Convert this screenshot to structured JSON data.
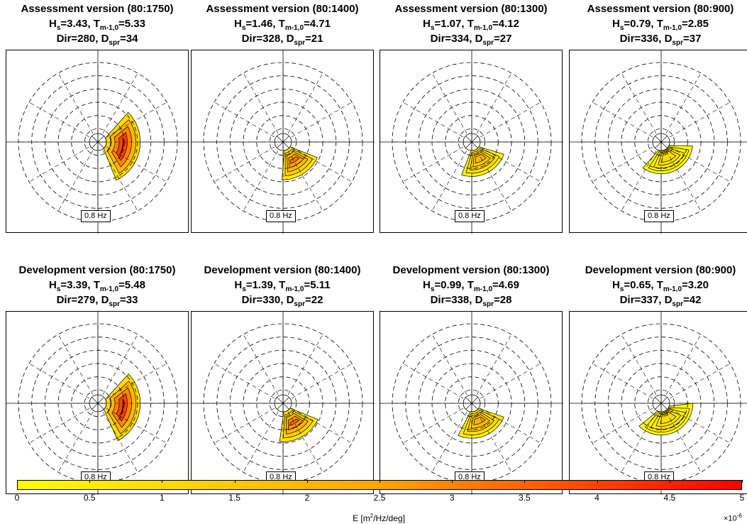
{
  "chart_data": {
    "type": "polar-contour",
    "panels": [
      {
        "heading": "Assessment version (80:1750)",
        "hs": "3.43",
        "tm": "5.33",
        "dir": "280",
        "dspr": "34",
        "peak_dir": 280,
        "spread": 34,
        "peak": 5.0
      },
      {
        "heading": "Assessment version (80:1400)",
        "hs": "1.46",
        "tm": "4.71",
        "dir": "328",
        "dspr": "21",
        "peak_dir": 328,
        "spread": 21,
        "peak": 3.2
      },
      {
        "heading": "Assessment version (80:1300)",
        "hs": "1.07",
        "tm": "4.12",
        "dir": "334",
        "dspr": "27",
        "peak_dir": 334,
        "spread": 27,
        "peak": 2.0
      },
      {
        "heading": "Assessment version (80:900)",
        "hs": "0.79",
        "tm": "2.85",
        "dir": "336",
        "dspr": "37",
        "peak_dir": 336,
        "spread": 37,
        "peak": 1.0
      },
      {
        "heading": "Development version (80:1750)",
        "hs": "3.39",
        "tm": "5.48",
        "dir": "279",
        "dspr": "33",
        "peak_dir": 279,
        "spread": 33,
        "peak": 5.0
      },
      {
        "heading": "Development version (80:1400)",
        "hs": "1.39",
        "tm": "5.11",
        "dir": "330",
        "dspr": "22",
        "peak_dir": 330,
        "spread": 22,
        "peak": 3.5
      },
      {
        "heading": "Development version (80:1300)",
        "hs": "0.99",
        "tm": "4.69",
        "dir": "338",
        "dspr": "28",
        "peak_dir": 338,
        "spread": 28,
        "peak": 2.2
      },
      {
        "heading": "Development version (80:900)",
        "hs": "0.65",
        "tm": "3.20",
        "dir": "337",
        "dspr": "42",
        "peak_dir": 337,
        "spread": 42,
        "peak": 1.0
      }
    ],
    "radius_label": "0.8 Hz",
    "colorbar": {
      "label_prefix": "E [m",
      "label_sup": "2",
      "label_suffix": "/Hz/deg]",
      "ticks": [
        "0",
        "0.5",
        "1",
        "1.5",
        "2",
        "2.5",
        "3",
        "3.5",
        "4",
        "4.5",
        "5"
      ],
      "range": [
        0,
        5
      ],
      "multiplier_base": "×10",
      "multiplier_exp": "-6",
      "colors": [
        "#ffff00",
        "#ffa500",
        "#ff0000"
      ]
    },
    "labels": {
      "hs": "H",
      "hs_sub": "s",
      "tm": "T",
      "tm_sub": "m-1,0",
      "dir": "Dir=",
      "dspr": "D",
      "dspr_sub": "spr"
    }
  }
}
